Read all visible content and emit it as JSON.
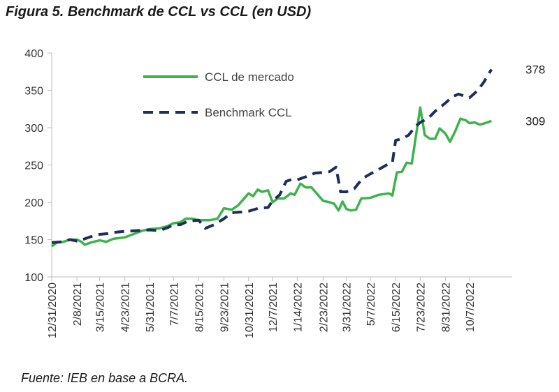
{
  "title": "Figura 5. Benchmark de CCL vs CCL (en USD)",
  "source": "Fuente: IEB en base a BCRA.",
  "chart_data": {
    "type": "line",
    "title": "Figura 5. Benchmark de CCL vs CCL (en USD)",
    "ylim": [
      100,
      400
    ],
    "yticks": [
      100,
      150,
      200,
      250,
      300,
      350,
      400
    ],
    "xlim": [
      "2020-12-31",
      "2022-12-12"
    ],
    "xticks": [
      {
        "date": "2020-12-31",
        "label": "12/31/2020"
      },
      {
        "date": "2021-02-08",
        "label": "2/8/2021"
      },
      {
        "date": "2021-03-15",
        "label": "3/15/2021"
      },
      {
        "date": "2021-04-23",
        "label": "4/23/2021"
      },
      {
        "date": "2021-05-31",
        "label": "5/31/2021"
      },
      {
        "date": "2021-07-07",
        "label": "7/7/2021"
      },
      {
        "date": "2021-08-15",
        "label": "8/15/2021"
      },
      {
        "date": "2021-09-23",
        "label": "9/23/2021"
      },
      {
        "date": "2021-10-31",
        "label": "10/31/2021"
      },
      {
        "date": "2021-12-07",
        "label": "12/7/2021"
      },
      {
        "date": "2022-01-14",
        "label": "1/14/2022"
      },
      {
        "date": "2022-02-23",
        "label": "2/23/2022"
      },
      {
        "date": "2022-03-31",
        "label": "3/31/2022"
      },
      {
        "date": "2022-05-07",
        "label": "5/7/2022"
      },
      {
        "date": "2022-06-15",
        "label": "6/15/2022"
      },
      {
        "date": "2022-07-23",
        "label": "7/23/2022"
      },
      {
        "date": "2022-08-31",
        "label": "8/31/2022"
      },
      {
        "date": "2022-10-07",
        "label": "10/7/2022"
      }
    ],
    "grid": false,
    "legend_position": "top-left",
    "series": [
      {
        "name": "CCL de mercado",
        "color": "#3cb44b",
        "style": "solid",
        "end_label": "309",
        "points": [
          [
            "2020-12-31",
            141
          ],
          [
            "2021-01-08",
            146
          ],
          [
            "2021-01-18",
            147
          ],
          [
            "2021-01-28",
            150
          ],
          [
            "2021-02-08",
            150
          ],
          [
            "2021-02-15",
            147
          ],
          [
            "2021-02-20",
            143
          ],
          [
            "2021-03-01",
            146
          ],
          [
            "2021-03-15",
            149
          ],
          [
            "2021-03-25",
            147
          ],
          [
            "2021-04-05",
            151
          ],
          [
            "2021-04-23",
            153
          ],
          [
            "2021-05-05",
            157
          ],
          [
            "2021-05-20",
            162
          ],
          [
            "2021-05-31",
            164
          ],
          [
            "2021-06-15",
            165
          ],
          [
            "2021-06-28",
            168
          ],
          [
            "2021-07-07",
            172
          ],
          [
            "2021-07-17",
            173
          ],
          [
            "2021-07-26",
            178
          ],
          [
            "2021-08-05",
            178
          ],
          [
            "2021-08-15",
            176
          ],
          [
            "2021-09-01",
            176
          ],
          [
            "2021-09-13",
            178
          ],
          [
            "2021-09-23",
            192
          ],
          [
            "2021-10-05",
            190
          ],
          [
            "2021-10-15",
            196
          ],
          [
            "2021-10-31",
            212
          ],
          [
            "2021-11-07",
            208
          ],
          [
            "2021-11-14",
            217
          ],
          [
            "2021-11-21",
            214
          ],
          [
            "2021-11-30",
            216
          ],
          [
            "2021-12-07",
            200
          ],
          [
            "2021-12-15",
            205
          ],
          [
            "2021-12-25",
            205
          ],
          [
            "2022-01-04",
            212
          ],
          [
            "2022-01-10",
            210
          ],
          [
            "2022-01-19",
            225
          ],
          [
            "2022-01-27",
            220
          ],
          [
            "2022-02-05",
            220
          ],
          [
            "2022-02-13",
            212
          ],
          [
            "2022-02-23",
            202
          ],
          [
            "2022-03-05",
            200
          ],
          [
            "2022-03-12",
            198
          ],
          [
            "2022-03-19",
            189
          ],
          [
            "2022-03-25",
            201
          ],
          [
            "2022-03-31",
            191
          ],
          [
            "2022-04-07",
            189
          ],
          [
            "2022-04-15",
            190
          ],
          [
            "2022-04-23",
            205
          ],
          [
            "2022-05-07",
            206
          ],
          [
            "2022-05-20",
            210
          ],
          [
            "2022-06-05",
            212
          ],
          [
            "2022-06-10",
            209
          ],
          [
            "2022-06-17",
            240
          ],
          [
            "2022-06-25",
            241
          ],
          [
            "2022-07-02",
            253
          ],
          [
            "2022-07-10",
            252
          ],
          [
            "2022-07-23",
            327
          ],
          [
            "2022-07-30",
            290
          ],
          [
            "2022-08-07",
            285
          ],
          [
            "2022-08-15",
            285
          ],
          [
            "2022-08-22",
            299
          ],
          [
            "2022-08-31",
            292
          ],
          [
            "2022-09-07",
            281
          ],
          [
            "2022-09-15",
            295
          ],
          [
            "2022-09-23",
            312
          ],
          [
            "2022-10-01",
            310
          ],
          [
            "2022-10-07",
            306
          ],
          [
            "2022-10-15",
            307
          ],
          [
            "2022-10-23",
            304
          ],
          [
            "2022-10-31",
            306
          ],
          [
            "2022-11-10",
            309
          ]
        ]
      },
      {
        "name": "Benchmark CCL",
        "color": "#1f2d5c",
        "style": "dashed",
        "end_label": "378",
        "points": [
          [
            "2020-12-31",
            146
          ],
          [
            "2021-01-15",
            147
          ],
          [
            "2021-01-28",
            150
          ],
          [
            "2021-02-08",
            148
          ],
          [
            "2021-02-20",
            151
          ],
          [
            "2021-03-05",
            155
          ],
          [
            "2021-03-15",
            157
          ],
          [
            "2021-03-28",
            158
          ],
          [
            "2021-04-10",
            160
          ],
          [
            "2021-04-23",
            161
          ],
          [
            "2021-05-10",
            162
          ],
          [
            "2021-05-31",
            163
          ],
          [
            "2021-06-15",
            162
          ],
          [
            "2021-06-28",
            166
          ],
          [
            "2021-07-07",
            170
          ],
          [
            "2021-07-18",
            170
          ],
          [
            "2021-07-30",
            175
          ],
          [
            "2021-08-15",
            176
          ],
          [
            "2021-08-25",
            165
          ],
          [
            "2021-09-08",
            170
          ],
          [
            "2021-09-23",
            178
          ],
          [
            "2021-10-05",
            186
          ],
          [
            "2021-10-20",
            187
          ],
          [
            "2021-10-31",
            188
          ],
          [
            "2021-11-15",
            192
          ],
          [
            "2021-11-30",
            193
          ],
          [
            "2021-12-07",
            202
          ],
          [
            "2021-12-18",
            210
          ],
          [
            "2021-12-28",
            228
          ],
          [
            "2022-01-07",
            231
          ],
          [
            "2022-01-14",
            230
          ],
          [
            "2022-01-30",
            235
          ],
          [
            "2022-02-10",
            239
          ],
          [
            "2022-02-23",
            240
          ],
          [
            "2022-03-05",
            241
          ],
          [
            "2022-03-15",
            247
          ],
          [
            "2022-03-22",
            214
          ],
          [
            "2022-03-31",
            214
          ],
          [
            "2022-04-12",
            218
          ],
          [
            "2022-04-25",
            232
          ],
          [
            "2022-05-07",
            238
          ],
          [
            "2022-05-20",
            244
          ],
          [
            "2022-06-01",
            250
          ],
          [
            "2022-06-10",
            253
          ],
          [
            "2022-06-15",
            283
          ],
          [
            "2022-06-25",
            285
          ],
          [
            "2022-07-05",
            290
          ],
          [
            "2022-07-15",
            301
          ],
          [
            "2022-07-23",
            307
          ],
          [
            "2022-08-05",
            313
          ],
          [
            "2022-08-15",
            322
          ],
          [
            "2022-08-31",
            333
          ],
          [
            "2022-09-10",
            341
          ],
          [
            "2022-09-20",
            345
          ],
          [
            "2022-10-07",
            340
          ],
          [
            "2022-10-20",
            350
          ],
          [
            "2022-10-30",
            362
          ],
          [
            "2022-11-10",
            378
          ]
        ]
      }
    ]
  }
}
